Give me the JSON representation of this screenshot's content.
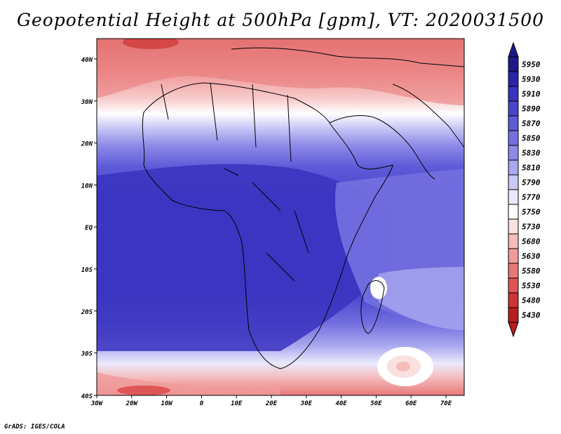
{
  "title": "Geopotential Height at 500hPa [gpm], VT: 2020031500",
  "footer": "GrADS: IGES/COLA",
  "map": {
    "lat_labels": [
      "40N",
      "30N",
      "20N",
      "10N",
      "EQ",
      "10S",
      "20S",
      "30S",
      "40S"
    ],
    "lon_labels": [
      "30W",
      "20W",
      "10W",
      "0",
      "10E",
      "20E",
      "30E",
      "40E",
      "50E",
      "60E",
      "70E"
    ]
  },
  "colorbar": {
    "labels": [
      "5950",
      "5930",
      "5910",
      "5890",
      "5870",
      "5850",
      "5830",
      "5810",
      "5790",
      "5770",
      "5750",
      "5730",
      "5680",
      "5630",
      "5580",
      "5530",
      "5480",
      "5430"
    ],
    "colors": [
      "#1e1a8c",
      "#2a24a8",
      "#3a33bf",
      "#4a45cc",
      "#5e5ad8",
      "#7470e0",
      "#8d8ae8",
      "#a9a7ef",
      "#c9c8f6",
      "#eaeafc",
      "#ffffff",
      "#fbe0e0",
      "#f5bcbc",
      "#ef9b9b",
      "#e87878",
      "#df5555",
      "#cf3434",
      "#b81e1e"
    ]
  }
}
